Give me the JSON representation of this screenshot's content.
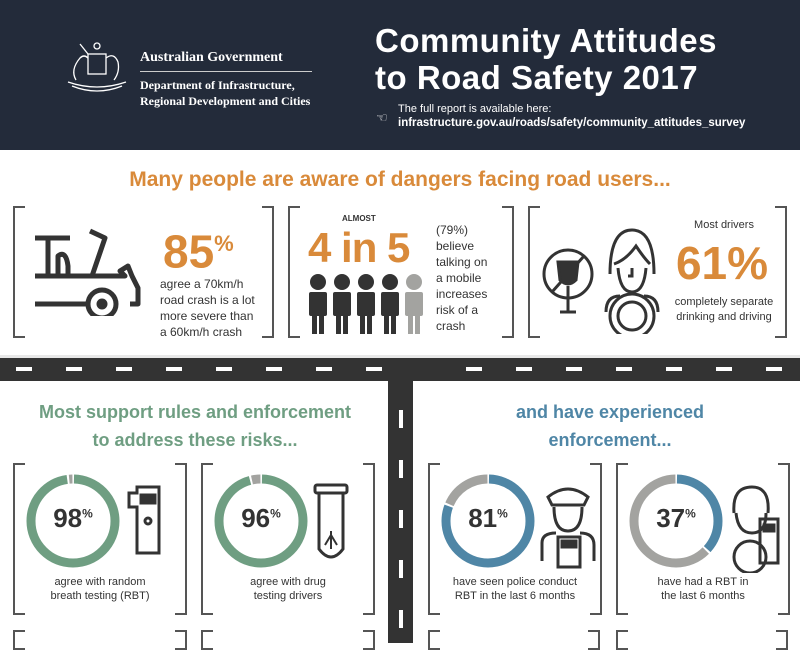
{
  "header": {
    "gov_name": "Australian Government",
    "department_line1": "Department of Infrastructure,",
    "department_line2": "Regional Development and Cities",
    "title_line1": "Community Attitudes",
    "title_line2": "to Road Safety 2017",
    "report_label": "The full report is available here:",
    "report_url": "infrastructure.gov.au/roads/safety/community_attitudes_survey"
  },
  "awareness": {
    "heading": "Many people are aware of dangers facing road users...",
    "stats": [
      {
        "value": "85",
        "unit": "%",
        "text_lines": [
          "agree a 70km/h",
          "road crash is a lot",
          "more severe than",
          "a 60km/h crash"
        ],
        "icon": "crashed-car-icon"
      },
      {
        "prefix": "ALMOST",
        "value": "4 in 5",
        "text_lines": [
          "(79%)",
          "believe",
          "talking on",
          "a mobile",
          "increases",
          "risk of a",
          "crash"
        ],
        "icon": "people-icon",
        "fraction": 0.79
      },
      {
        "intro": "Most drivers",
        "value": "61%",
        "text_lines": [
          "completely separate",
          "drinking and driving"
        ],
        "icon": "no-drinking-driver-icon"
      }
    ]
  },
  "support": {
    "heading_line1": "Most support rules and enforcement",
    "heading_line2": "to address these risks...",
    "items": [
      {
        "percent": 98,
        "caption_lines": [
          "agree with random",
          "breath testing (RBT)"
        ],
        "icon": "breathalyser-icon"
      },
      {
        "percent": 96,
        "caption_lines": [
          "agree with drug",
          "testing drivers"
        ],
        "icon": "test-tube-icon"
      }
    ]
  },
  "enforcement": {
    "heading_line1": "and have experienced",
    "heading_line2": "enforcement...",
    "items": [
      {
        "percent": 81,
        "caption_lines": [
          "have seen police conduct",
          "RBT in the last 6 months"
        ],
        "icon": "police-officer-icon"
      },
      {
        "percent": 37,
        "caption_lines": [
          "have had a RBT in",
          "the last 6 months"
        ],
        "icon": "driver-breath-test-icon"
      }
    ]
  },
  "colors": {
    "navy": "#232b3a",
    "orange": "#d98a3a",
    "green": "#6f9e82",
    "blue": "#4f86a6",
    "gray": "#a3a3a0",
    "dark": "#333333"
  }
}
